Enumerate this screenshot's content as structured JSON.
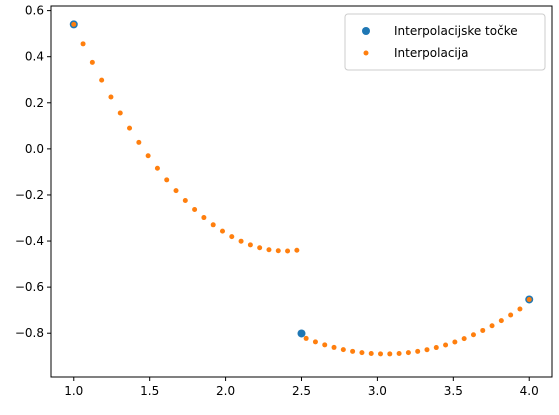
{
  "chart_data": {
    "type": "scatter",
    "title": "",
    "xlabel": "",
    "ylabel": "",
    "xlim": [
      0.85,
      4.15
    ],
    "ylim": [
      -0.99,
      0.62
    ],
    "grid": false,
    "legend_position": "top-right",
    "x_ticks": [
      "1.0",
      "1.5",
      "2.0",
      "2.5",
      "3.0",
      "3.5",
      "4.0"
    ],
    "x_tick_values": [
      1.0,
      1.5,
      2.0,
      2.5,
      3.0,
      3.5,
      4.0
    ],
    "y_ticks": [
      "0.6",
      "0.4",
      "0.2",
      "0.0",
      "−0.2",
      "−0.4",
      "−0.6",
      "−0.8"
    ],
    "y_tick_values": [
      0.6,
      0.4,
      0.2,
      0.0,
      -0.2,
      -0.4,
      -0.6,
      -0.8
    ],
    "series": [
      {
        "name": "Interpolacijske točke",
        "color": "#1f77b4",
        "marker": "large-dot",
        "x": [
          1.0,
          2.5,
          4.0
        ],
        "y": [
          0.5403,
          -0.8011,
          -0.6536
        ]
      },
      {
        "name": "Interpolacija",
        "color": "#ff7f0e",
        "marker": "small-dot",
        "x": [
          1.0,
          1.0612,
          1.1224,
          1.1837,
          1.2449,
          1.3061,
          1.3673,
          1.4286,
          1.4898,
          1.551,
          1.6122,
          1.6735,
          1.7347,
          1.7959,
          1.8571,
          1.9184,
          1.9796,
          2.0408,
          2.102,
          2.1633,
          2.2245,
          2.2857,
          2.3469,
          2.4082,
          2.4694,
          2.5306,
          2.5918,
          2.6531,
          2.7143,
          2.7755,
          2.8367,
          2.898,
          2.9592,
          3.0204,
          3.0816,
          3.1429,
          3.2041,
          3.2653,
          3.3265,
          3.3878,
          3.449,
          3.5102,
          3.5714,
          3.6327,
          3.6939,
          3.7551,
          3.8163,
          3.8776,
          3.9388,
          4.0
        ],
        "y": [
          0.5403,
          0.4559,
          0.3752,
          0.2983,
          0.2252,
          0.1558,
          0.0902,
          0.0283,
          -0.0298,
          -0.0841,
          -0.1345,
          -0.1811,
          -0.224,
          -0.263,
          -0.2981,
          -0.3295,
          -0.357,
          -0.3808,
          -0.4007,
          -0.4168,
          -0.4291,
          -0.4376,
          -0.4422,
          -0.4431,
          -0.4401,
          -0.8226,
          -0.8375,
          -0.8505,
          -0.8617,
          -0.8711,
          -0.8786,
          -0.8842,
          -0.8879,
          -0.8898,
          -0.8899,
          -0.8881,
          -0.8844,
          -0.8789,
          -0.8715,
          -0.8622,
          -0.8511,
          -0.8381,
          -0.8233,
          -0.8066,
          -0.788,
          -0.7675,
          -0.7452,
          -0.721,
          -0.695,
          -0.6536
        ]
      }
    ]
  }
}
